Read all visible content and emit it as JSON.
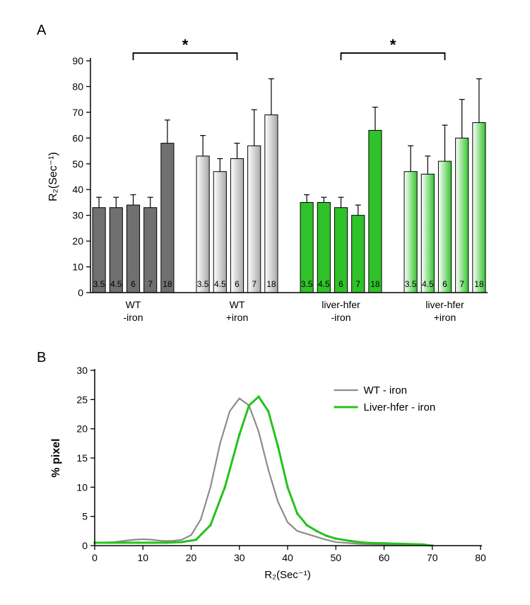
{
  "panelA": {
    "label": "A",
    "type": "bar",
    "ylabel": "R₂(Sec⁻¹)",
    "ylabel_fontsize": 16,
    "ylim": [
      0,
      90
    ],
    "ytick_step": 10,
    "tick_fontsize": 14,
    "background_color": "#ffffff",
    "axis_color": "#000000",
    "bar_stroke": "#000000",
    "bar_width": 0.75,
    "value_label_fontsize": 12,
    "group_label_fontsize": 14,
    "sig_marker": "*",
    "sig_fontsize": 22,
    "sig_brackets": [
      {
        "from_group": 0,
        "to_group": 1,
        "y": 93
      },
      {
        "from_group": 2,
        "to_group": 3,
        "y": 93
      }
    ],
    "groups": [
      {
        "label": "WT\n-iron",
        "fill": "#707070",
        "gradient": false,
        "bars": [
          {
            "cat": "3.5",
            "value": 33,
            "err": 4
          },
          {
            "cat": "4.5",
            "value": 33,
            "err": 4
          },
          {
            "cat": "6",
            "value": 34,
            "err": 4
          },
          {
            "cat": "7",
            "value": 33,
            "err": 4
          },
          {
            "cat": "18",
            "value": 58,
            "err": 9
          }
        ]
      },
      {
        "label": "WT\n+iron",
        "fill": "#bfbfbf",
        "gradient": true,
        "gradient_from": "#ffffff",
        "gradient_to": "#a8a8a8",
        "bars": [
          {
            "cat": "3.5",
            "value": 53,
            "err": 8
          },
          {
            "cat": "4.5",
            "value": 47,
            "err": 5
          },
          {
            "cat": "6",
            "value": 52,
            "err": 6
          },
          {
            "cat": "7",
            "value": 57,
            "err": 14
          },
          {
            "cat": "18",
            "value": 69,
            "err": 14
          }
        ]
      },
      {
        "label": "liver-hfer\n-iron",
        "fill": "#30c22a",
        "gradient": false,
        "bars": [
          {
            "cat": "3.5",
            "value": 35,
            "err": 3
          },
          {
            "cat": "4.5",
            "value": 35,
            "err": 2
          },
          {
            "cat": "6",
            "value": 33,
            "err": 4
          },
          {
            "cat": "7",
            "value": 30,
            "err": 4
          },
          {
            "cat": "18",
            "value": 63,
            "err": 9
          }
        ]
      },
      {
        "label": "liver-hfer\n+iron",
        "fill": "#7fe37a",
        "gradient": true,
        "gradient_from": "#ffffff",
        "gradient_to": "#34c52e",
        "bars": [
          {
            "cat": "3.5",
            "value": 47,
            "err": 10
          },
          {
            "cat": "4.5",
            "value": 46,
            "err": 7
          },
          {
            "cat": "6",
            "value": 51,
            "err": 14
          },
          {
            "cat": "7",
            "value": 60,
            "err": 15
          },
          {
            "cat": "18",
            "value": 66,
            "err": 17
          }
        ]
      }
    ]
  },
  "panelB": {
    "label": "B",
    "type": "line",
    "xlabel": "R₂(Sec⁻¹)",
    "ylabel": "% pixel",
    "xlabel_fontsize": 15,
    "ylabel_fontsize": 16,
    "tick_fontsize": 14,
    "background_color": "#ffffff",
    "axis_color": "#000000",
    "xlim": [
      0,
      80
    ],
    "xtick_step": 10,
    "ylim": [
      0,
      30
    ],
    "ytick_step": 5,
    "legend_fontsize": 15,
    "series": [
      {
        "name": "WT - iron",
        "color": "#8c8c8c",
        "line_width": 2.2,
        "markers": false,
        "points": [
          [
            0,
            0.5
          ],
          [
            2,
            0.5
          ],
          [
            4,
            0.6
          ],
          [
            6,
            0.8
          ],
          [
            8,
            1.0
          ],
          [
            10,
            1.1
          ],
          [
            12,
            1.0
          ],
          [
            14,
            0.8
          ],
          [
            16,
            0.8
          ],
          [
            18,
            1.0
          ],
          [
            20,
            1.8
          ],
          [
            22,
            4.5
          ],
          [
            24,
            10.0
          ],
          [
            26,
            17.5
          ],
          [
            28,
            23.0
          ],
          [
            30,
            25.2
          ],
          [
            32,
            24.0
          ],
          [
            34,
            19.5
          ],
          [
            36,
            13.0
          ],
          [
            38,
            7.5
          ],
          [
            40,
            4.0
          ],
          [
            42,
            2.5
          ],
          [
            44,
            2.0
          ],
          [
            46,
            1.5
          ],
          [
            48,
            1.0
          ],
          [
            50,
            0.6
          ],
          [
            55,
            0.3
          ],
          [
            60,
            0.2
          ],
          [
            65,
            0.2
          ],
          [
            70,
            0.0
          ]
        ]
      },
      {
        "name": "Liver-hfer - iron",
        "color": "#26c21e",
        "line_width": 3.0,
        "markers": true,
        "marker_size": 3.2,
        "points": [
          [
            0,
            0.5
          ],
          [
            3,
            0.5
          ],
          [
            6,
            0.5
          ],
          [
            9,
            0.5
          ],
          [
            12,
            0.5
          ],
          [
            15,
            0.5
          ],
          [
            18,
            0.6
          ],
          [
            21,
            1.0
          ],
          [
            24,
            3.5
          ],
          [
            27,
            10.0
          ],
          [
            30,
            19.0
          ],
          [
            32,
            24.0
          ],
          [
            34,
            25.5
          ],
          [
            36,
            23.0
          ],
          [
            38,
            17.0
          ],
          [
            40,
            10.0
          ],
          [
            42,
            5.5
          ],
          [
            44,
            3.5
          ],
          [
            46,
            2.5
          ],
          [
            48,
            1.7
          ],
          [
            50,
            1.2
          ],
          [
            53,
            0.8
          ],
          [
            56,
            0.5
          ],
          [
            60,
            0.4
          ],
          [
            64,
            0.3
          ],
          [
            68,
            0.2
          ],
          [
            70,
            0.0
          ]
        ]
      }
    ]
  }
}
